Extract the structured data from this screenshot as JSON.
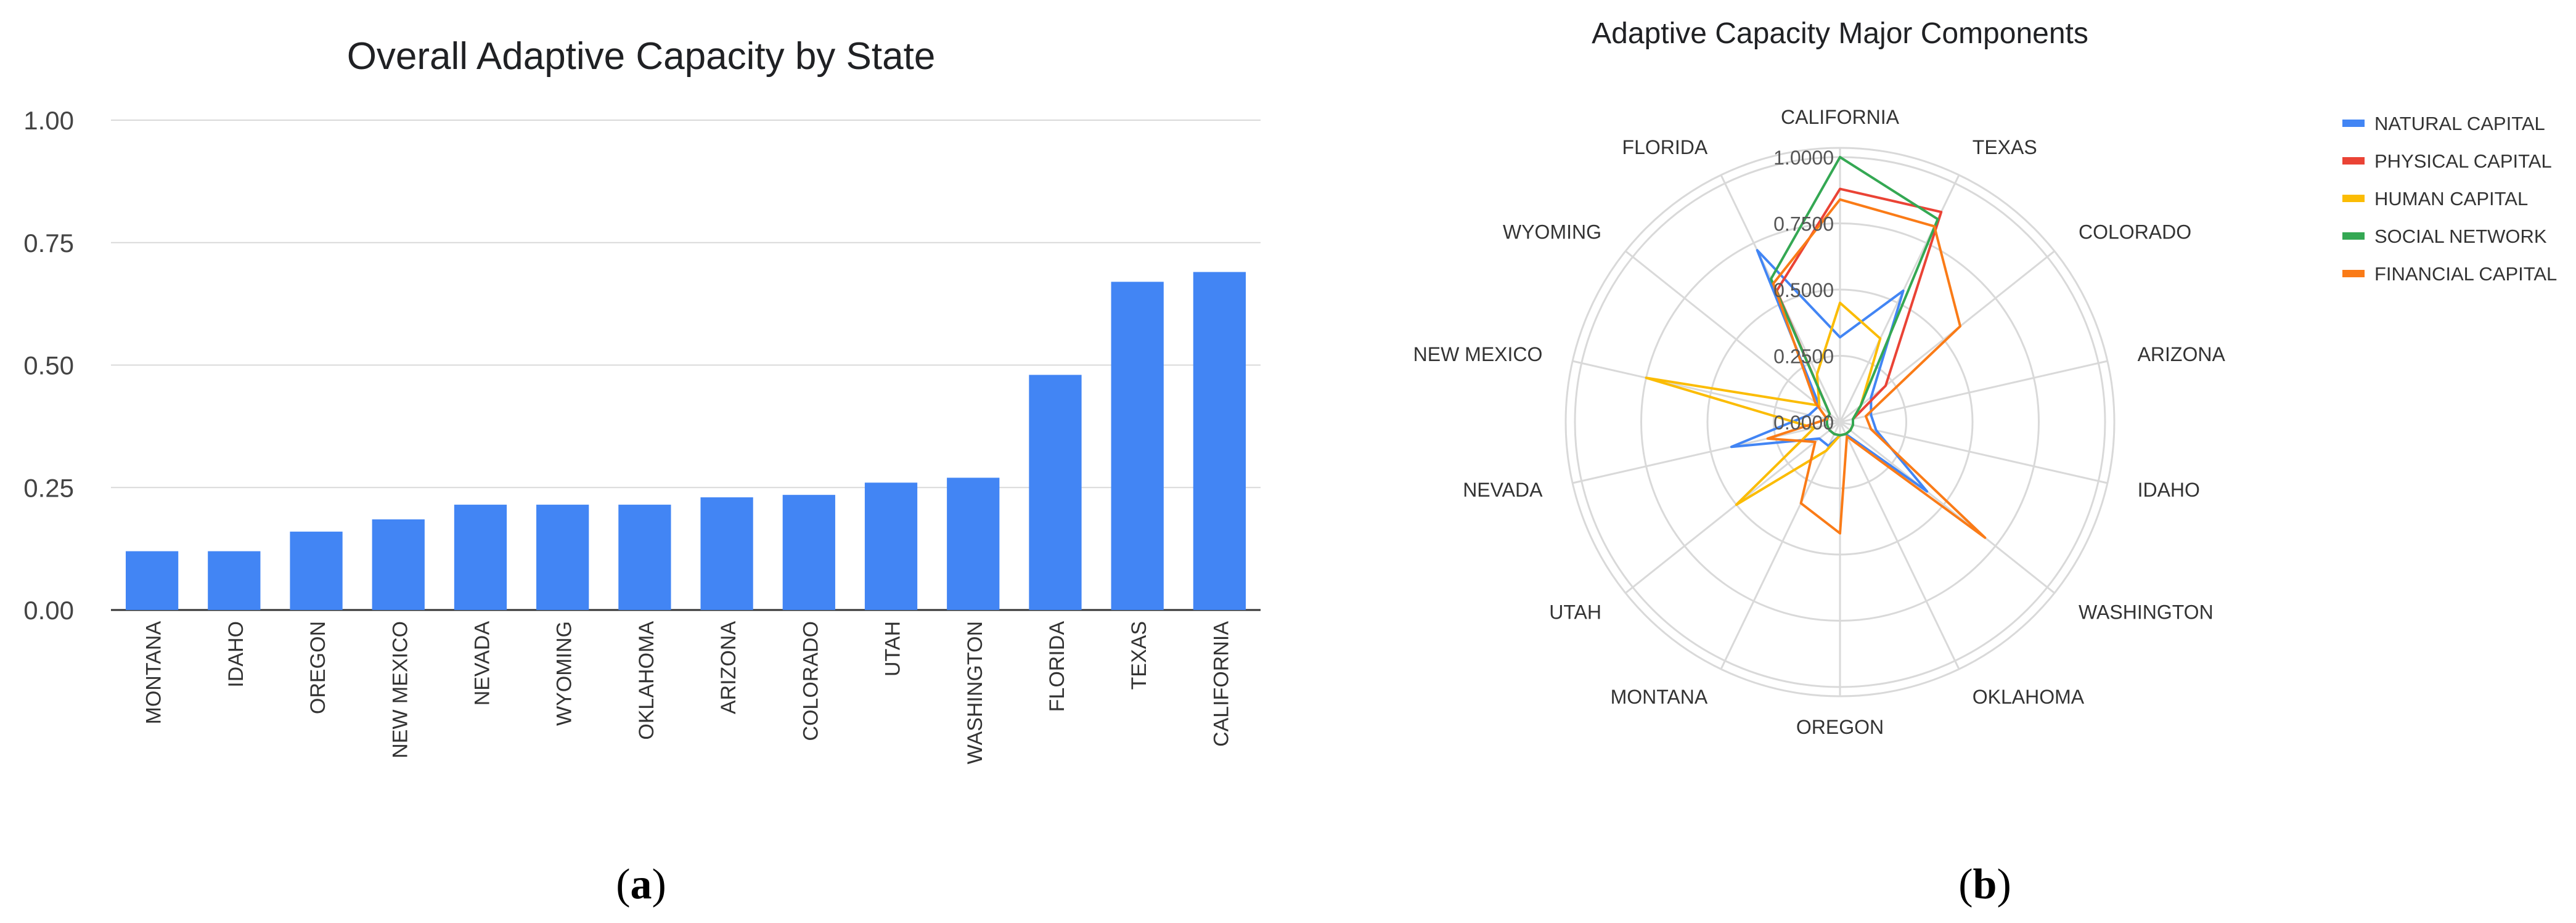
{
  "chart_data": [
    {
      "type": "bar",
      "title": "Overall Adaptive Capacity by State",
      "categories": [
        "MONTANA",
        "IDAHO",
        "OREGON",
        "NEW MEXICO",
        "NEVADA",
        "WYOMING",
        "OKLAHOMA",
        "ARIZONA",
        "COLORADO",
        "UTAH",
        "WASHINGTON",
        "FLORIDA",
        "TEXAS",
        "CALIFORNIA"
      ],
      "values": [
        0.12,
        0.12,
        0.16,
        0.185,
        0.215,
        0.215,
        0.215,
        0.23,
        0.235,
        0.26,
        0.27,
        0.48,
        0.67,
        0.69
      ],
      "ylim": [
        0,
        1
      ],
      "yticks": [
        "0.00",
        "0.25",
        "0.50",
        "0.75",
        "1.00"
      ],
      "grid": true,
      "color": "#4285F4",
      "caption": "a"
    },
    {
      "type": "radar",
      "title": "Adaptive Capacity Major Components",
      "axes": [
        "CALIFORNIA",
        "TEXAS",
        "COLORADO",
        "ARIZONA",
        "IDAHO",
        "WASHINGTON",
        "OKLAHOMA",
        "OREGON",
        "MONTANA",
        "UTAH",
        "NEVADA",
        "NEW MEXICO",
        "WYOMING",
        "FLORIDA"
      ],
      "rlim": [
        0,
        1
      ],
      "rticks": [
        "0.0000",
        "0.2500",
        "0.5000",
        "0.7500",
        "1.0000"
      ],
      "legend_position": "right",
      "series": [
        {
          "name": "NATURAL CAPITAL",
          "color": "#4285F4",
          "values": [
            0.32,
            0.55,
            0.15,
            0.12,
            0.14,
            0.42,
            0.05,
            0.05,
            0.1,
            0.1,
            0.42,
            0.12,
            0.1,
            0.72
          ]
        },
        {
          "name": "PHYSICAL CAPITAL",
          "color": "#EA4335",
          "values": [
            0.88,
            0.88,
            0.22,
            0.05,
            0.05,
            0.05,
            0.05,
            0.05,
            0.05,
            0.05,
            0.05,
            0.05,
            0.05,
            0.55
          ]
        },
        {
          "name": "HUMAN CAPITAL",
          "color": "#FBBC04",
          "values": [
            0.45,
            0.35,
            0.1,
            0.05,
            0.05,
            0.05,
            0.05,
            0.05,
            0.12,
            0.5,
            0.1,
            0.75,
            0.1,
            0.2
          ]
        },
        {
          "name": "SOCIAL NETWORK",
          "color": "#34A853",
          "values": [
            1.0,
            0.85,
            0.1,
            0.05,
            0.05,
            0.05,
            0.05,
            0.05,
            0.05,
            0.05,
            0.05,
            0.05,
            0.05,
            0.6
          ]
        },
        {
          "name": "FINANCIAL CAPITAL",
          "color": "#FA7B17",
          "values": [
            0.84,
            0.82,
            0.58,
            0.1,
            0.12,
            0.7,
            0.06,
            0.42,
            0.34,
            0.12,
            0.28,
            0.05,
            0.12,
            0.58
          ]
        }
      ],
      "caption": "b"
    }
  ]
}
